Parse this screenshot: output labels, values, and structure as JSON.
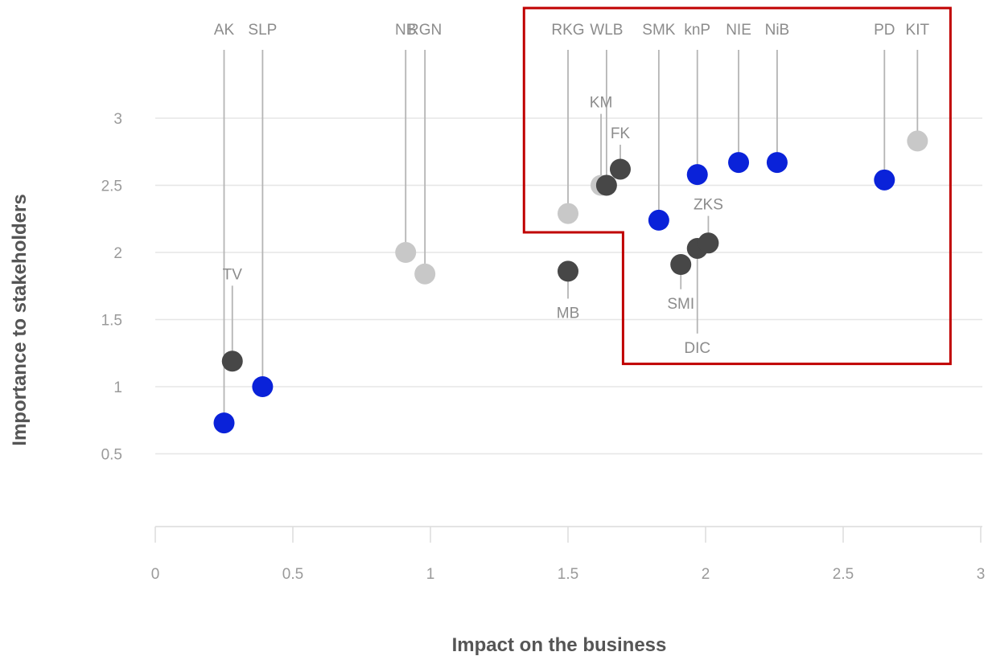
{
  "chart_data": {
    "type": "scatter",
    "xlabel": "Impact on the business",
    "ylabel": "Importance to stakeholders",
    "xlim": [
      0,
      3
    ],
    "ylim": [
      0,
      3.3
    ],
    "x_ticks": [
      "0",
      "0.5",
      "1",
      "1.5",
      "2",
      "2.5",
      "3"
    ],
    "y_ticks": [
      "0.5",
      "1",
      "1.5",
      "2",
      "2.5",
      "3"
    ],
    "grid": "horizontal",
    "colors": {
      "blue": "#0a22d9",
      "dark": "#474747",
      "light": "#c8c8c8",
      "highlight": "#c00000",
      "leader": "#b5b5b5"
    },
    "highlight_region": [
      [
        1.34,
        3.4
      ],
      [
        2.89,
        3.4
      ],
      [
        2.89,
        1.17
      ],
      [
        1.7,
        1.17
      ],
      [
        1.7,
        2.15
      ],
      [
        1.34,
        2.15
      ]
    ],
    "points": [
      {
        "label": "AK",
        "x": 0.25,
        "y": 0.73,
        "color": "blue",
        "label_pos": "top"
      },
      {
        "label": "SLP",
        "x": 0.39,
        "y": 1.0,
        "color": "blue",
        "label_pos": "top"
      },
      {
        "label": "TV",
        "x": 0.28,
        "y": 1.19,
        "color": "dark",
        "label_pos": "near",
        "label_y": 1.8
      },
      {
        "label": "NB",
        "x": 0.91,
        "y": 2.0,
        "color": "light",
        "label_pos": "top"
      },
      {
        "label": "RGN",
        "x": 0.98,
        "y": 1.84,
        "color": "light",
        "label_pos": "top"
      },
      {
        "label": "RKG",
        "x": 1.5,
        "y": 2.29,
        "color": "light",
        "label_pos": "top"
      },
      {
        "label": "MB",
        "x": 1.5,
        "y": 1.86,
        "color": "dark",
        "label_pos": "below",
        "label_y": 1.56
      },
      {
        "label": "KM",
        "x": 1.62,
        "y": 2.5,
        "color": "light",
        "label_pos": "near",
        "label_y": 3.08
      },
      {
        "label": "WLB",
        "x": 1.64,
        "y": 2.5,
        "color": "dark",
        "label_pos": "top"
      },
      {
        "label": "FK",
        "x": 1.69,
        "y": 2.62,
        "color": "dark",
        "label_pos": "near",
        "label_y": 2.85
      },
      {
        "label": "SMK",
        "x": 1.83,
        "y": 2.24,
        "color": "blue",
        "label_pos": "top"
      },
      {
        "label": "knP",
        "x": 1.97,
        "y": 2.58,
        "color": "blue",
        "label_pos": "top"
      },
      {
        "label": "SMI",
        "x": 1.91,
        "y": 1.91,
        "color": "dark",
        "label_pos": "below",
        "label_y": 1.63
      },
      {
        "label": "DIC",
        "x": 1.97,
        "y": 2.03,
        "color": "dark",
        "label_pos": "below",
        "label_y": 1.3
      },
      {
        "label": "ZKS",
        "x": 2.01,
        "y": 2.07,
        "color": "dark",
        "label_pos": "near",
        "label_y": 2.32
      },
      {
        "label": "NIE",
        "x": 2.12,
        "y": 2.67,
        "color": "blue",
        "label_pos": "top"
      },
      {
        "label": "NiB",
        "x": 2.26,
        "y": 2.67,
        "color": "blue",
        "label_pos": "top"
      },
      {
        "label": "PD",
        "x": 2.65,
        "y": 2.54,
        "color": "blue",
        "label_pos": "top"
      },
      {
        "label": "KIT",
        "x": 2.77,
        "y": 2.83,
        "color": "light",
        "label_pos": "top"
      }
    ]
  }
}
